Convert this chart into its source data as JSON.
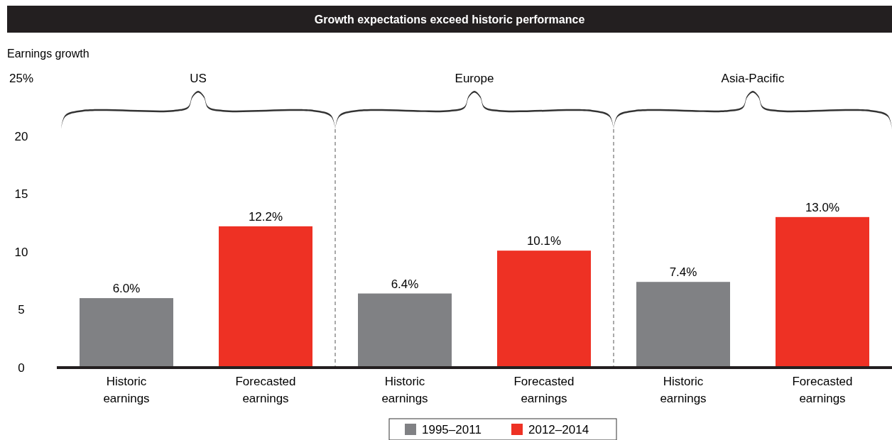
{
  "chart_data": {
    "type": "bar",
    "title": "Growth expectations exceed historic performance",
    "ylabel": "Earnings growth",
    "categories": [
      "Historic earnings",
      "Forecasted earnings",
      "Historic earnings",
      "Forecasted earnings",
      "Historic earnings",
      "Forecasted earnings"
    ],
    "series": [
      {
        "name": "1995–2011",
        "color": "#808184",
        "values": [
          6.0,
          null,
          6.4,
          null,
          7.4,
          null
        ],
        "value_labels": [
          "6.0%",
          null,
          "6.4%",
          null,
          "7.4%",
          null
        ]
      },
      {
        "name": "2012–2014",
        "color": "#ee3124",
        "values": [
          null,
          12.2,
          null,
          10.1,
          null,
          13.0
        ],
        "value_labels": [
          null,
          "12.2%",
          null,
          "10.1%",
          null,
          "13.0%"
        ]
      }
    ],
    "ylim": [
      0,
      25
    ],
    "yticks": [
      0,
      5,
      10,
      15,
      20,
      {
        "value": 25,
        "label": "25%"
      }
    ],
    "annotations": [
      "US",
      "Europe",
      "Asia-Pacific"
    ],
    "legend": "bottom",
    "grid": false
  }
}
